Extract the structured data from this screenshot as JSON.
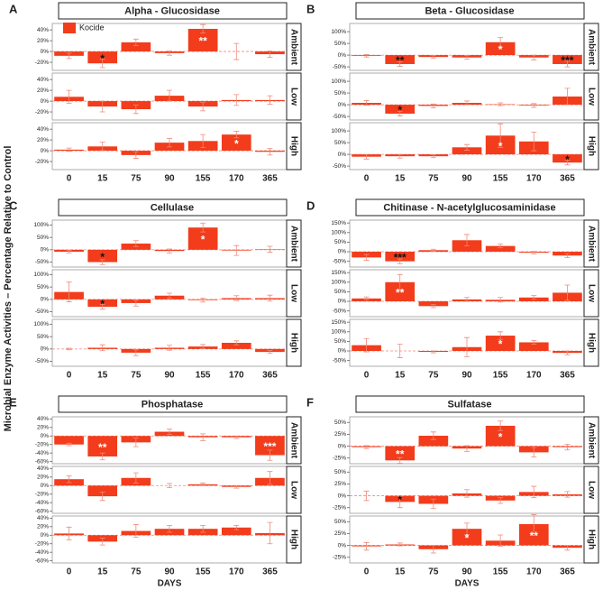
{
  "y_label": "Microbial Enzyme Activities – Percentage Relative to Control",
  "legend": {
    "name": "Kocide"
  },
  "color": "#f23c1c",
  "error_color": "#f08a78",
  "chart_data": [
    {
      "type": "bar",
      "panel": "A",
      "title": "Alpha - Glucosidase",
      "categories": [
        "0",
        "15",
        "75",
        "90",
        "155",
        "170",
        "365"
      ],
      "ylim": [
        -35,
        52
      ],
      "yticks": [
        {
          "value": -20,
          "label": "-20%"
        },
        {
          "value": 0,
          "label": "0%"
        },
        {
          "value": 20,
          "label": "20%"
        },
        {
          "value": 40,
          "label": "40%"
        }
      ],
      "facets": [
        {
          "name": "Ambient",
          "values": [
            -8,
            -22,
            17,
            -3,
            42,
            0,
            -5
          ],
          "errors": [
            5,
            8,
            6,
            4,
            8,
            15,
            6
          ],
          "annotations": [
            null,
            "*",
            null,
            null,
            "**",
            null,
            null
          ]
        },
        {
          "name": "Low",
          "values": [
            8,
            -10,
            -15,
            10,
            -10,
            2,
            2
          ],
          "errors": [
            12,
            10,
            8,
            10,
            8,
            10,
            8
          ],
          "annotations": [
            null,
            null,
            null,
            null,
            null,
            null,
            null
          ]
        },
        {
          "name": "High",
          "values": [
            2,
            8,
            -8,
            15,
            18,
            30,
            -2
          ],
          "errors": [
            3,
            8,
            6,
            8,
            12,
            6,
            6
          ],
          "annotations": [
            null,
            null,
            null,
            null,
            null,
            "*",
            null
          ]
        }
      ]
    },
    {
      "type": "bar",
      "panel": "B",
      "title": "Beta - Glucosidase",
      "categories": [
        "0",
        "15",
        "75",
        "90",
        "155",
        "170",
        "365"
      ],
      "ylim": [
        -65,
        135
      ],
      "yticks": [
        {
          "value": -50,
          "label": "-50%"
        },
        {
          "value": 0,
          "label": "0%"
        },
        {
          "value": 50,
          "label": "50%"
        },
        {
          "value": 100,
          "label": "100%"
        }
      ],
      "facets": [
        {
          "name": "Ambient",
          "values": [
            -3,
            -38,
            -8,
            -10,
            55,
            -10,
            -38
          ],
          "errors": [
            5,
            10,
            6,
            8,
            20,
            10,
            12
          ],
          "annotations": [
            null,
            "**",
            null,
            null,
            "*",
            null,
            "***"
          ]
        },
        {
          "name": "Low",
          "values": [
            8,
            -38,
            -5,
            8,
            2,
            -3,
            35
          ],
          "errors": [
            10,
            10,
            8,
            8,
            6,
            8,
            35
          ],
          "annotations": [
            null,
            "*",
            null,
            null,
            null,
            null,
            null
          ]
        },
        {
          "name": "High",
          "values": [
            -10,
            -8,
            -8,
            30,
            80,
            55,
            -35
          ],
          "errors": [
            10,
            8,
            6,
            12,
            50,
            40,
            10
          ],
          "annotations": [
            null,
            null,
            null,
            null,
            "*",
            null,
            "*"
          ]
        }
      ]
    },
    {
      "type": "bar",
      "panel": "C",
      "title": "Cellulase",
      "categories": [
        "0",
        "15",
        "75",
        "90",
        "155",
        "170",
        "365"
      ],
      "ylim": [
        -70,
        120
      ],
      "yticks": [
        {
          "value": -50,
          "label": "-50%"
        },
        {
          "value": 0,
          "label": "0%"
        },
        {
          "value": 50,
          "label": "50%"
        },
        {
          "value": 100,
          "label": "100%"
        }
      ],
      "facets": [
        {
          "name": "Ambient",
          "values": [
            -8,
            -50,
            25,
            -5,
            90,
            -3,
            2
          ],
          "errors": [
            5,
            10,
            12,
            8,
            18,
            20,
            12
          ],
          "annotations": [
            null,
            "*",
            null,
            null,
            "*",
            null,
            null
          ]
        },
        {
          "name": "Low",
          "values": [
            30,
            -30,
            -15,
            15,
            -3,
            5,
            5
          ],
          "errors": [
            40,
            10,
            12,
            10,
            8,
            10,
            12
          ],
          "annotations": [
            null,
            "*",
            null,
            null,
            null,
            null,
            null
          ]
        },
        {
          "name": "High",
          "values": [
            0,
            5,
            -15,
            5,
            10,
            25,
            -12
          ],
          "errors": [
            3,
            12,
            12,
            10,
            8,
            8,
            6
          ],
          "annotations": [
            null,
            null,
            null,
            null,
            null,
            null,
            null
          ]
        }
      ]
    },
    {
      "type": "bar",
      "panel": "D",
      "title": "Chitinase - N-acetylglucosaminidase",
      "categories": [
        "0",
        "15",
        "75",
        "90",
        "155",
        "170",
        "365"
      ],
      "ylim": [
        -80,
        165
      ],
      "yticks": [
        {
          "value": -50,
          "label": "-50%"
        },
        {
          "value": 0,
          "label": "0%"
        },
        {
          "value": 50,
          "label": "50%"
        },
        {
          "value": 100,
          "label": "100%"
        },
        {
          "value": 150,
          "label": "150%"
        }
      ],
      "facets": [
        {
          "name": "Ambient",
          "values": [
            -30,
            -50,
            8,
            60,
            30,
            -5,
            -20
          ],
          "errors": [
            15,
            12,
            5,
            30,
            10,
            6,
            10
          ],
          "annotations": [
            null,
            "***",
            null,
            null,
            null,
            null,
            null
          ]
        },
        {
          "name": "Low",
          "values": [
            15,
            100,
            -25,
            10,
            8,
            20,
            45
          ],
          "errors": [
            8,
            40,
            8,
            10,
            12,
            10,
            40
          ],
          "annotations": [
            null,
            "**",
            null,
            null,
            null,
            null,
            null
          ]
        },
        {
          "name": "High",
          "values": [
            30,
            0,
            -5,
            20,
            80,
            45,
            -10
          ],
          "errors": [
            35,
            35,
            5,
            50,
            20,
            10,
            10
          ],
          "annotations": [
            null,
            null,
            null,
            null,
            "*",
            null,
            null
          ]
        }
      ]
    },
    {
      "type": "bar",
      "panel": "E",
      "title": "Phosphatase",
      "categories": [
        "0",
        "15",
        "75",
        "90",
        "155",
        "170",
        "365"
      ],
      "x_label": "DAYS",
      "ylim": [
        -65,
        45
      ],
      "yticks": [
        {
          "value": -60,
          "label": "-60%"
        },
        {
          "value": -40,
          "label": "-40%"
        },
        {
          "value": -20,
          "label": "-20%"
        },
        {
          "value": 0,
          "label": "0%"
        },
        {
          "value": 20,
          "label": "20%"
        },
        {
          "value": 40,
          "label": "40%"
        }
      ],
      "facets": [
        {
          "name": "Ambient",
          "values": [
            -20,
            -48,
            -15,
            10,
            -3,
            -3,
            -45
          ],
          "errors": [
            3,
            8,
            10,
            6,
            8,
            3,
            12
          ],
          "annotations": [
            null,
            "**",
            null,
            null,
            null,
            null,
            "***"
          ]
        },
        {
          "name": "Low",
          "values": [
            15,
            -25,
            18,
            0,
            3,
            -3,
            18
          ],
          "errors": [
            8,
            10,
            12,
            5,
            3,
            3,
            15
          ],
          "annotations": [
            null,
            null,
            null,
            null,
            null,
            null,
            null
          ]
        },
        {
          "name": "High",
          "values": [
            4,
            -15,
            10,
            15,
            15,
            18,
            5
          ],
          "errors": [
            15,
            8,
            15,
            8,
            8,
            5,
            25
          ],
          "annotations": [
            null,
            null,
            null,
            null,
            null,
            null,
            null
          ]
        }
      ]
    },
    {
      "type": "bar",
      "panel": "F",
      "title": "Sulfatase",
      "categories": [
        "0",
        "15",
        "75",
        "90",
        "155",
        "170",
        "365"
      ],
      "x_label": "DAYS",
      "ylim": [
        -37,
        62
      ],
      "yticks": [
        {
          "value": -25,
          "label": "-25%"
        },
        {
          "value": 0,
          "label": "0%"
        },
        {
          "value": 25,
          "label": "25%"
        },
        {
          "value": 50,
          "label": "50%"
        }
      ],
      "facets": [
        {
          "name": "Ambient",
          "values": [
            -2,
            -30,
            22,
            -5,
            43,
            -13,
            -2
          ],
          "errors": [
            3,
            6,
            8,
            6,
            10,
            10,
            6
          ],
          "annotations": [
            null,
            "**",
            null,
            null,
            "*",
            null,
            null
          ]
        },
        {
          "name": "Low",
          "values": [
            0,
            -13,
            -17,
            5,
            -10,
            8,
            3
          ],
          "errors": [
            10,
            12,
            10,
            8,
            6,
            12,
            6
          ],
          "annotations": [
            null,
            "*",
            null,
            null,
            null,
            null,
            null
          ]
        },
        {
          "name": "High",
          "values": [
            -2,
            2,
            -8,
            35,
            10,
            45,
            -5
          ],
          "errors": [
            8,
            3,
            8,
            12,
            12,
            20,
            5
          ],
          "annotations": [
            null,
            null,
            null,
            "*",
            null,
            "**",
            null
          ]
        }
      ]
    }
  ]
}
